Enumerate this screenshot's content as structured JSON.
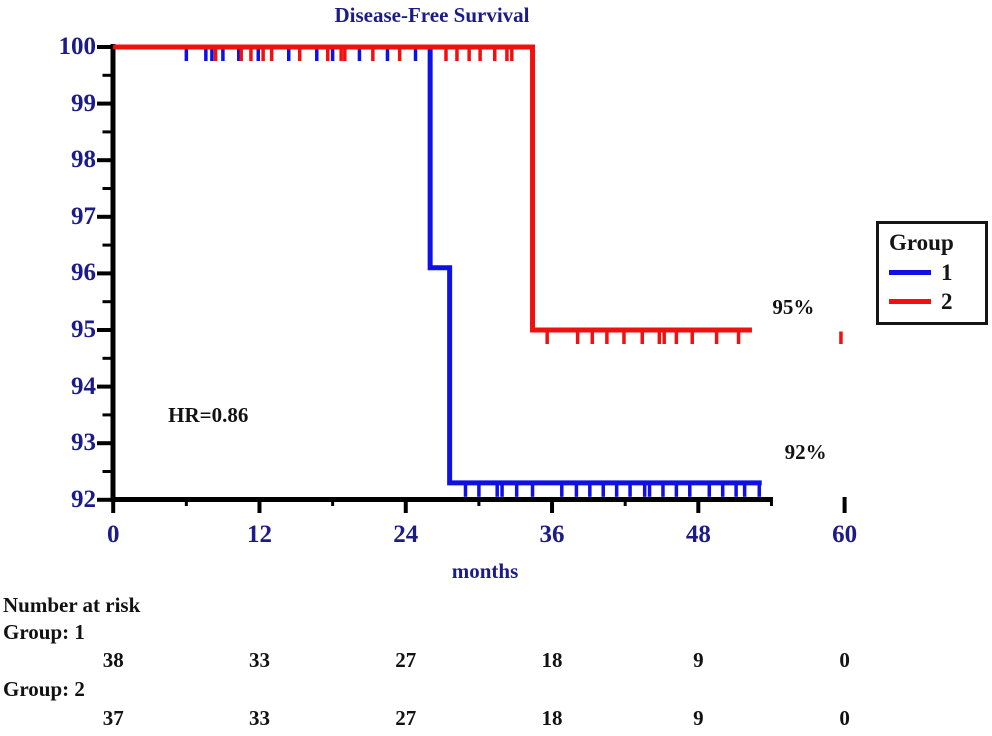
{
  "colors": {
    "navy": "#1b1b8a",
    "blue": "#0f10e6",
    "red": "#f01010",
    "black": "#121212",
    "axis": "#000000",
    "background": "#ffffff"
  },
  "chart_data": {
    "type": "line",
    "subtype": "kaplan-meier-step-curves",
    "title": "Disease-Free Survival",
    "xlabel": "months",
    "ylabel": "",
    "xlim": [
      0,
      60
    ],
    "ylim": [
      92,
      100
    ],
    "grid": "off",
    "x_ticks": [
      0,
      12,
      24,
      36,
      48,
      60
    ],
    "x_minor_ticks": [
      6,
      18,
      30,
      42,
      54
    ],
    "y_ticks": [
      100,
      99,
      98,
      97,
      96,
      95,
      94,
      93,
      92
    ],
    "y_minor_ticks": [
      99.5,
      98.5,
      97.5,
      96.5,
      95.5,
      94.5,
      93.5,
      92.5
    ],
    "legend": {
      "title": "Group",
      "position": "right",
      "entries": [
        {
          "label": "1",
          "color": "#0f10e6"
        },
        {
          "label": "2",
          "color": "#f01010"
        }
      ]
    },
    "series": [
      {
        "name": "1",
        "color": "#0f10e6",
        "points": [
          [
            0,
            100
          ],
          [
            26,
            100
          ],
          [
            26,
            96.1
          ],
          [
            27.6,
            96.1
          ],
          [
            27.6,
            92.3
          ],
          [
            53.2,
            92.3
          ]
        ],
        "censor_ticks": [
          {
            "y": 100,
            "months": [
              6,
              7.6,
              8.1,
              9,
              10.3,
              11.9,
              14.4,
              16.7,
              18,
              20.2,
              22.5,
              24.8
            ]
          },
          {
            "y": 92.3,
            "months": [
              28.9,
              30,
              31.5,
              31.9,
              33.1,
              34.4,
              36.8,
              38,
              39.1,
              40.2,
              41.3,
              42.4,
              43.6,
              44,
              45.1,
              46.2,
              47.3,
              48.9,
              50,
              51.1,
              51.8,
              53
            ]
          }
        ]
      },
      {
        "name": "2",
        "color": "#f01010",
        "points": [
          [
            0,
            100
          ],
          [
            34.4,
            100
          ],
          [
            34.4,
            95
          ],
          [
            52.4,
            95
          ]
        ],
        "censor_ticks": [
          {
            "y": 100,
            "months": [
              8.4,
              10.5,
              11.3,
              12.3,
              13,
              15.3,
              17.6,
              18.7,
              19,
              21.3,
              23.5,
              27.3,
              28.2,
              29.2,
              30.1,
              31.3,
              32.3,
              32.7
            ]
          },
          {
            "y": 95,
            "months": [
              35.6,
              38.1,
              39.3,
              40.5,
              41.9,
              43.4,
              44.8,
              45.2,
              46.2,
              47.5,
              49.5,
              51.3,
              59.7
            ]
          }
        ]
      }
    ],
    "annotations": [
      {
        "id": "hr",
        "text": "HR=0.86",
        "x": 7.8,
        "y": 93.5
      },
      {
        "id": "pct95",
        "text": "95%",
        "x": 55.8,
        "y": 95.41
      },
      {
        "id": "pct92",
        "text": "92%",
        "x": 56.8,
        "y": 92.84
      }
    ],
    "at_risk": {
      "header": "Number at risk",
      "time_points": [
        0,
        12,
        24,
        36,
        48,
        60
      ],
      "groups": [
        {
          "label": "Group: 1",
          "values": [
            "38",
            "33",
            "27",
            "18",
            "9",
            "0"
          ]
        },
        {
          "label": "Group: 2",
          "values": [
            "37",
            "33",
            "27",
            "18",
            "9",
            "0"
          ]
        }
      ]
    }
  }
}
